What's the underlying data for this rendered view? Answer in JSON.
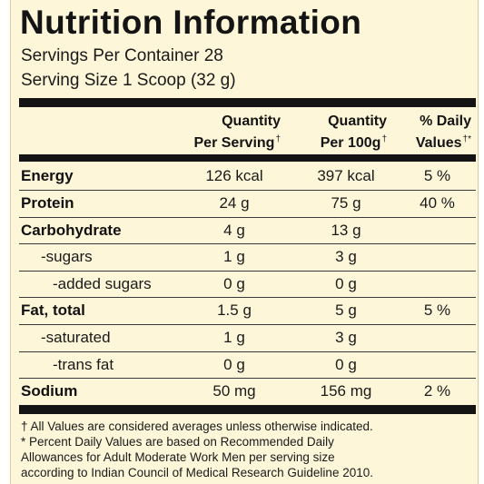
{
  "title": "Nutrition Information",
  "servings_per_container": "Servings Per Container 28",
  "serving_size": "Serving Size 1 Scoop (32 g)",
  "columns": {
    "per_serving": {
      "line1": "Quantity",
      "line2": "Per Serving",
      "mark": "†"
    },
    "per_100g": {
      "line1": "Quantity",
      "line2": "Per 100g",
      "mark": "†"
    },
    "daily_values": {
      "line1": "% Daily",
      "line2": "Values",
      "mark": "†*"
    }
  },
  "rows": [
    {
      "name": "Energy",
      "per_serving": "126 kcal",
      "per_100g": "397 kcal",
      "dv": "5 %"
    },
    {
      "name": "Protein",
      "per_serving": "24 g",
      "per_100g": "75 g",
      "dv": "40 %"
    },
    {
      "name": "Carbohydrate",
      "per_serving": "4 g",
      "per_100g": "13 g",
      "dv": ""
    },
    {
      "name": "-sugars",
      "per_serving": "1 g",
      "per_100g": "3 g",
      "dv": ""
    },
    {
      "name": "-added sugars",
      "per_serving": "0 g",
      "per_100g": "0 g",
      "dv": ""
    },
    {
      "name": "Fat, total",
      "per_serving": "1.5 g",
      "per_100g": "5 g",
      "dv": "5 %"
    },
    {
      "name": "-saturated",
      "per_serving": "1 g",
      "per_100g": "3 g",
      "dv": ""
    },
    {
      "name": "-trans fat",
      "per_serving": "0 g",
      "per_100g": "0 g",
      "dv": ""
    },
    {
      "name": "Sodium",
      "per_serving": "50 mg",
      "per_100g": "156 mg",
      "dv": "2 %"
    }
  ],
  "footnotes": {
    "line1": "† All Values are considered averages unless otherwise indicated.",
    "line2": "* Percent Daily Values are based on Recommended Daily",
    "line3": "Allowances for Adult Moderate Work Men per serving size",
    "line4": "according to Indian Council of Medical Research Guideline 2010."
  }
}
